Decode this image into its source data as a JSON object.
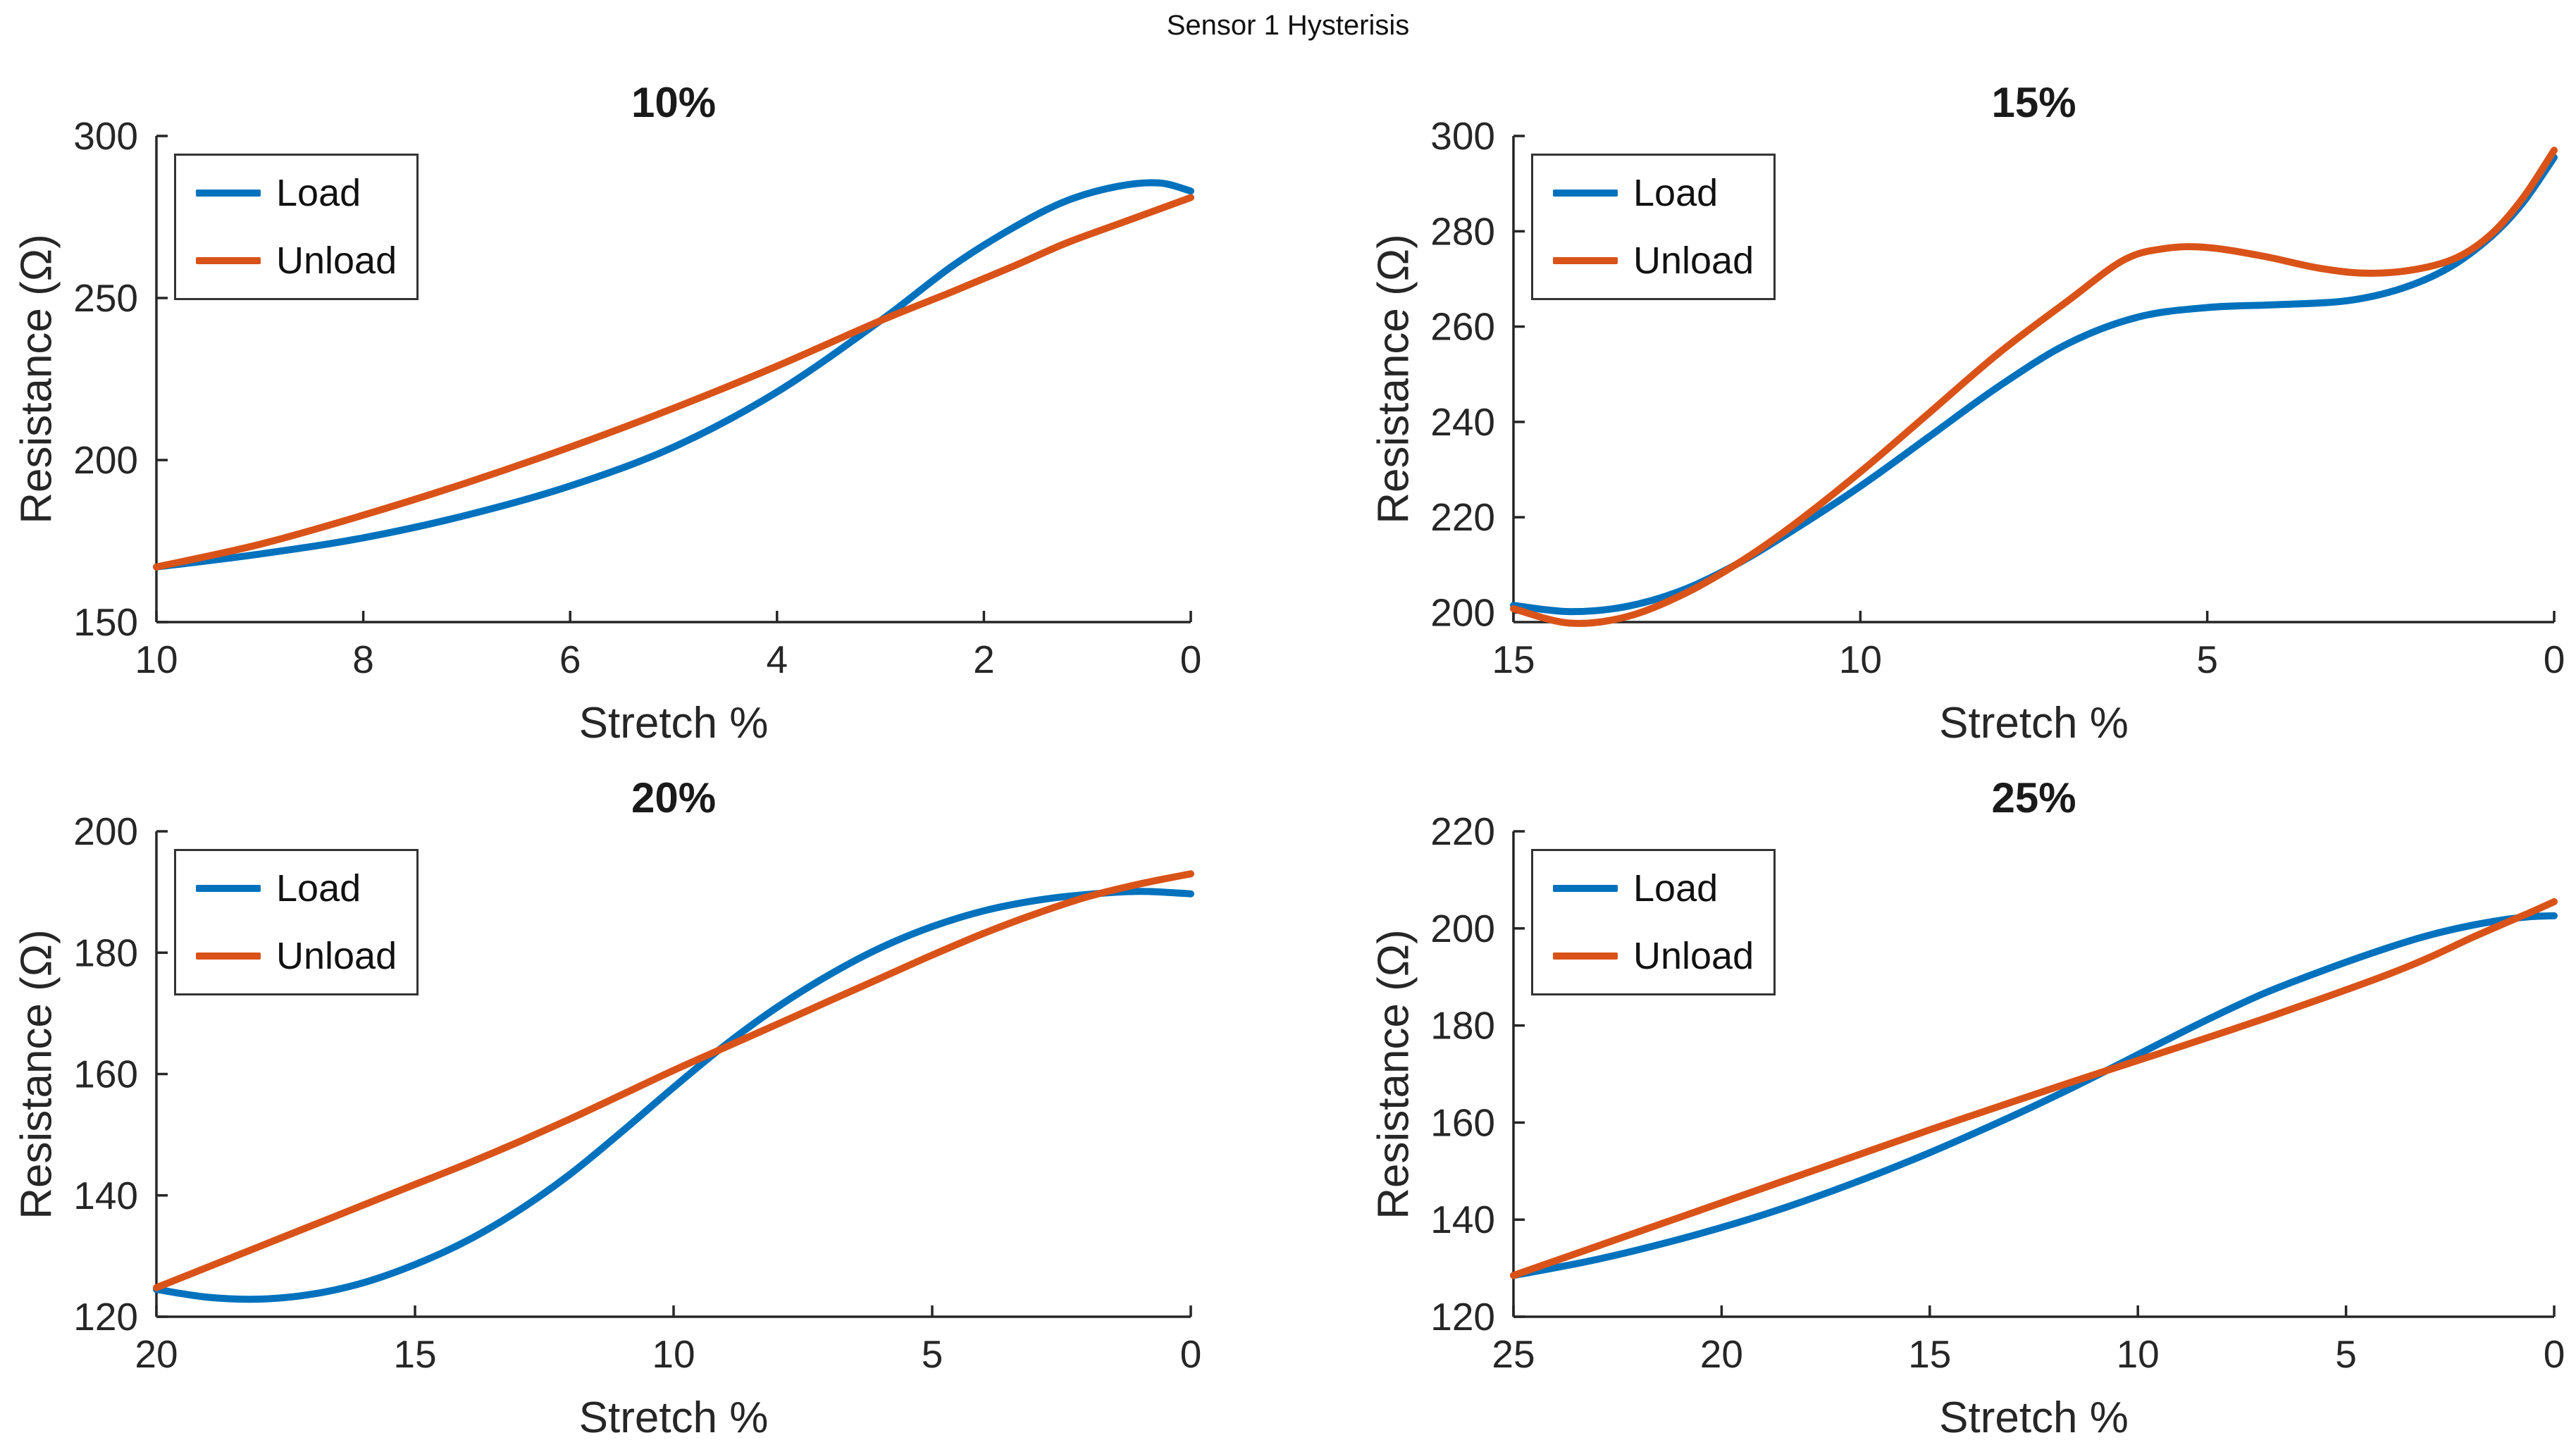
{
  "figure_title": "Sensor 1 Hysterisis",
  "colors": {
    "load": "#0072BD",
    "unload": "#D95319",
    "axes": "#262626",
    "text": "#212121",
    "background": "#ffffff"
  },
  "chart_data": [
    {
      "type": "line",
      "title": "10%",
      "xlabel": "Stretch %",
      "ylabel": "Resistance (Ω)",
      "xlim": [
        10,
        0
      ],
      "ylim": [
        150,
        300
      ],
      "x_axis_reversed": true,
      "grid": false,
      "xticks": [
        10,
        8,
        6,
        4,
        2,
        0
      ],
      "yticks": [
        150,
        200,
        250,
        300
      ],
      "legend": [
        "Load",
        "Unload"
      ],
      "legend_position": "northwest",
      "series": [
        {
          "name": "Load",
          "color": "#0072BD",
          "points": [
            [
              10,
              167
            ],
            [
              9,
              171
            ],
            [
              8,
              176
            ],
            [
              7,
              183
            ],
            [
              6,
              192
            ],
            [
              5,
              204
            ],
            [
              4,
              221
            ],
            [
              3,
              243
            ],
            [
              2.3,
              260
            ],
            [
              1.7,
              272
            ],
            [
              1.2,
              280
            ],
            [
              0.7,
              284.5
            ],
            [
              0.3,
              285.5
            ],
            [
              0,
              283
            ]
          ]
        },
        {
          "name": "Unload",
          "color": "#D95319",
          "points": [
            [
              10,
              167
            ],
            [
              9,
              174
            ],
            [
              8,
              183
            ],
            [
              7,
              193
            ],
            [
              6,
              204
            ],
            [
              5,
              216
            ],
            [
              4,
              229
            ],
            [
              3,
              243
            ],
            [
              2.3,
              252
            ],
            [
              1.7,
              260
            ],
            [
              1.2,
              267
            ],
            [
              0.6,
              274
            ],
            [
              0,
              281
            ]
          ]
        }
      ]
    },
    {
      "type": "line",
      "title": "15%",
      "xlabel": "Stretch %",
      "ylabel": "Resistance (Ω)",
      "xlim": [
        15,
        0
      ],
      "ylim": [
        198,
        300
      ],
      "x_axis_reversed": true,
      "grid": false,
      "xticks": [
        15,
        10,
        5,
        0
      ],
      "yticks": [
        200,
        220,
        240,
        260,
        280,
        300
      ],
      "legend": [
        "Load",
        "Unload"
      ],
      "legend_position": "northwest",
      "series": [
        {
          "name": "Load",
          "color": "#0072BD",
          "points": [
            [
              15,
              201.5
            ],
            [
              14.2,
              200.2
            ],
            [
              13.4,
              201.2
            ],
            [
              12.6,
              204.5
            ],
            [
              11.8,
              210
            ],
            [
              11,
              217
            ],
            [
              10,
              226.5
            ],
            [
              9,
              237
            ],
            [
              8,
              247.5
            ],
            [
              7,
              256.5
            ],
            [
              6,
              262
            ],
            [
              5,
              264
            ],
            [
              4,
              264.6
            ],
            [
              3,
              265.4
            ],
            [
              2.2,
              268
            ],
            [
              1.5,
              272.5
            ],
            [
              0.9,
              279
            ],
            [
              0.45,
              286
            ],
            [
              0,
              295.5
            ]
          ]
        },
        {
          "name": "Unload",
          "color": "#D95319",
          "points": [
            [
              15,
              200.8
            ],
            [
              14.2,
              197.8
            ],
            [
              13.4,
              199
            ],
            [
              12.6,
              203.5
            ],
            [
              11.8,
              210
            ],
            [
              11,
              218
            ],
            [
              10,
              229.5
            ],
            [
              9,
              242
            ],
            [
              8,
              254.5
            ],
            [
              7,
              265.5
            ],
            [
              6.2,
              274
            ],
            [
              5.6,
              276.4
            ],
            [
              5,
              276.6
            ],
            [
              4.2,
              274.8
            ],
            [
              3.4,
              272.3
            ],
            [
              2.7,
              271.2
            ],
            [
              2,
              272
            ],
            [
              1.4,
              274.5
            ],
            [
              0.9,
              279.5
            ],
            [
              0.45,
              287
            ],
            [
              0,
              297
            ]
          ]
        }
      ]
    },
    {
      "type": "line",
      "title": "20%",
      "xlabel": "Stretch %",
      "ylabel": "Resistance (Ω)",
      "xlim": [
        20,
        0
      ],
      "ylim": [
        120,
        200
      ],
      "x_axis_reversed": true,
      "grid": false,
      "xticks": [
        20,
        15,
        10,
        5,
        0
      ],
      "yticks": [
        120,
        140,
        160,
        180,
        200
      ],
      "legend": [
        "Load",
        "Unload"
      ],
      "legend_position": "northwest",
      "series": [
        {
          "name": "Load",
          "color": "#0072BD",
          "points": [
            [
              20,
              124.5
            ],
            [
              19,
              123.2
            ],
            [
              18,
              122.9
            ],
            [
              17,
              123.7
            ],
            [
              16,
              125.6
            ],
            [
              15,
              128.6
            ],
            [
              14,
              132.5
            ],
            [
              13,
              137.5
            ],
            [
              12,
              143.5
            ],
            [
              11,
              150.5
            ],
            [
              10,
              157.8
            ],
            [
              9,
              164.8
            ],
            [
              8,
              171
            ],
            [
              7,
              176.3
            ],
            [
              6,
              180.8
            ],
            [
              5,
              184.3
            ],
            [
              4,
              186.9
            ],
            [
              3,
              188.6
            ],
            [
              2,
              189.6
            ],
            [
              1,
              190.1
            ],
            [
              0,
              189.7
            ]
          ]
        },
        {
          "name": "Unload",
          "color": "#D95319",
          "points": [
            [
              20,
              124.8
            ],
            [
              19,
              128.2
            ],
            [
              18,
              131.6
            ],
            [
              17,
              135
            ],
            [
              16,
              138.4
            ],
            [
              15,
              141.8
            ],
            [
              14,
              145.2
            ],
            [
              13,
              148.8
            ],
            [
              12,
              152.6
            ],
            [
              11,
              156.6
            ],
            [
              10,
              160.6
            ],
            [
              9,
              164.4
            ],
            [
              8,
              168.2
            ],
            [
              7,
              172
            ],
            [
              6,
              175.8
            ],
            [
              5,
              179.6
            ],
            [
              4,
              183.2
            ],
            [
              3,
              186.4
            ],
            [
              2,
              189.2
            ],
            [
              1,
              191.3
            ],
            [
              0,
              193
            ]
          ]
        }
      ]
    },
    {
      "type": "line",
      "title": "25%",
      "xlabel": "Stretch %",
      "ylabel": "Resistance (Ω)",
      "xlim": [
        25,
        0
      ],
      "ylim": [
        120,
        220
      ],
      "x_axis_reversed": true,
      "grid": false,
      "xticks": [
        25,
        20,
        15,
        10,
        5,
        0
      ],
      "yticks": [
        120,
        140,
        160,
        180,
        200,
        220
      ],
      "legend": [
        "Load",
        "Unload"
      ],
      "legend_position": "northwest",
      "series": [
        {
          "name": "Load",
          "color": "#0072BD",
          "points": [
            [
              25,
              128.5
            ],
            [
              23,
              131.8
            ],
            [
              21,
              136
            ],
            [
              19,
              141
            ],
            [
              17,
              147
            ],
            [
              15,
              153.8
            ],
            [
              13,
              161.4
            ],
            [
              11.5,
              167.5
            ],
            [
              10,
              174
            ],
            [
              8.5,
              180.5
            ],
            [
              7,
              186.5
            ],
            [
              5.5,
              191.5
            ],
            [
              4,
              196
            ],
            [
              3,
              198.6
            ],
            [
              2,
              200.6
            ],
            [
              1.2,
              201.8
            ],
            [
              0.6,
              202.4
            ],
            [
              0,
              202.6
            ]
          ]
        },
        {
          "name": "Unload",
          "color": "#D95319",
          "points": [
            [
              25,
              128.5
            ],
            [
              23,
              134.5
            ],
            [
              21,
              140.5
            ],
            [
              19,
              146.5
            ],
            [
              17,
              152.5
            ],
            [
              15,
              158.5
            ],
            [
              13,
              164.3
            ],
            [
              11.5,
              168.6
            ],
            [
              10,
              172.8
            ],
            [
              8.5,
              177
            ],
            [
              7,
              181.3
            ],
            [
              5.5,
              185.8
            ],
            [
              4,
              190.5
            ],
            [
              3,
              194
            ],
            [
              2,
              198
            ],
            [
              1.2,
              201
            ],
            [
              0.6,
              203.2
            ],
            [
              0,
              205.5
            ]
          ]
        }
      ]
    }
  ],
  "layout_note": "2x2 subplot grid, x axes reversed (max stretch at left), box off, inward ticks"
}
